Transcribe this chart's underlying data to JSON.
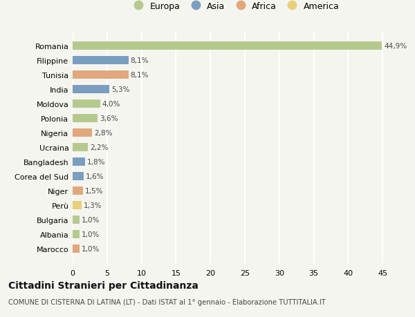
{
  "countries": [
    "Romania",
    "Filippine",
    "Tunisia",
    "India",
    "Moldova",
    "Polonia",
    "Nigeria",
    "Ucraina",
    "Bangladesh",
    "Corea del Sud",
    "Niger",
    "Perù",
    "Bulgaria",
    "Albania",
    "Marocco"
  ],
  "values": [
    44.9,
    8.1,
    8.1,
    5.3,
    4.0,
    3.6,
    2.8,
    2.2,
    1.8,
    1.6,
    1.5,
    1.3,
    1.0,
    1.0,
    1.0
  ],
  "labels": [
    "44,9%",
    "8,1%",
    "8,1%",
    "5,3%",
    "4,0%",
    "3,6%",
    "2,8%",
    "2,2%",
    "1,8%",
    "1,6%",
    "1,5%",
    "1,3%",
    "1,0%",
    "1,0%",
    "1,0%"
  ],
  "continent": [
    "Europa",
    "Asia",
    "Africa",
    "Asia",
    "Europa",
    "Europa",
    "Africa",
    "Europa",
    "Asia",
    "Asia",
    "Africa",
    "America",
    "Europa",
    "Europa",
    "Africa"
  ],
  "continent_colors": {
    "Europa": "#b5c98e",
    "Asia": "#7b9dc0",
    "Africa": "#e0a87c",
    "America": "#e8d07a"
  },
  "legend_entries": [
    "Europa",
    "Asia",
    "Africa",
    "America"
  ],
  "title": "Cittadini Stranieri per Cittadinanza",
  "subtitle": "COMUNE DI CISTERNA DI LATINA (LT) - Dati ISTAT al 1° gennaio - Elaborazione TUTTITALIA.IT",
  "xlim": [
    0,
    47
  ],
  "xticks": [
    0,
    5,
    10,
    15,
    20,
    25,
    30,
    35,
    40,
    45
  ],
  "background_color": "#f5f5f0",
  "grid_color": "#ffffff"
}
